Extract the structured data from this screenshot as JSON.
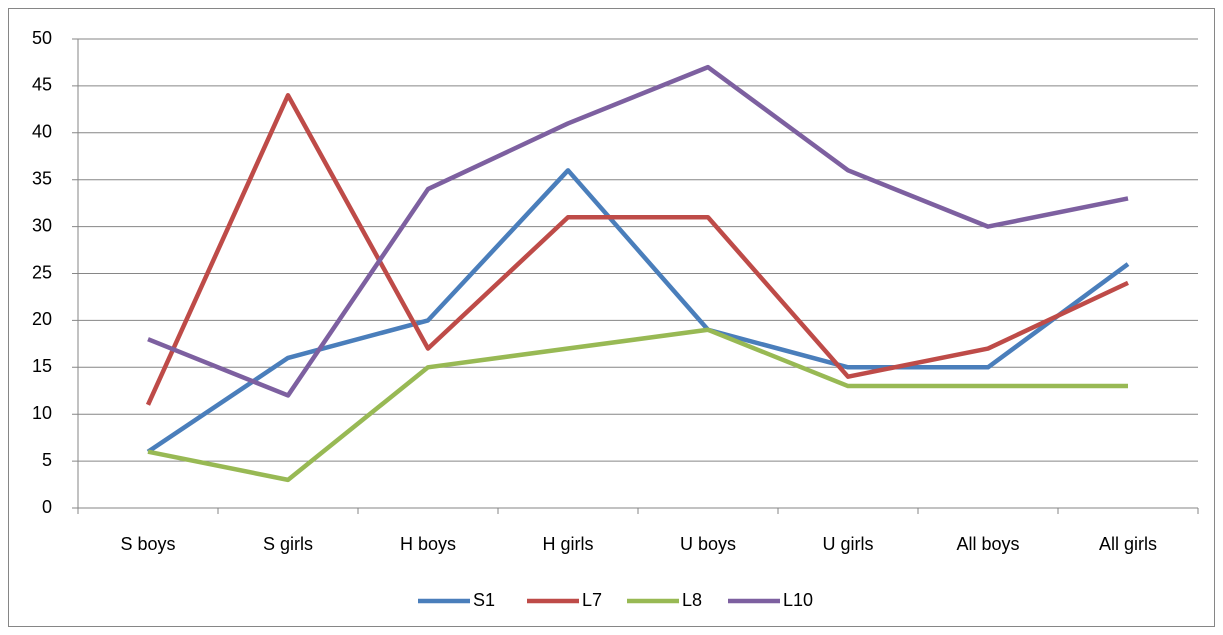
{
  "chart_data": {
    "type": "line",
    "categories": [
      "S boys",
      "S girls",
      "H boys",
      "H girls",
      "U boys",
      "U girls",
      "All boys",
      "All girls"
    ],
    "series": [
      {
        "name": "S1",
        "color": "#4a7ebb",
        "values": [
          6,
          16,
          20,
          36,
          19,
          15,
          15,
          26
        ]
      },
      {
        "name": "L7",
        "color": "#be4b48",
        "values": [
          11,
          44,
          17,
          31,
          31,
          14,
          17,
          24
        ]
      },
      {
        "name": "L8",
        "color": "#98b954",
        "values": [
          6,
          3,
          15,
          17,
          19,
          13,
          13,
          13
        ]
      },
      {
        "name": "L10",
        "color": "#7d60a0",
        "values": [
          18,
          12,
          34,
          41,
          47,
          36,
          30,
          33
        ]
      }
    ],
    "ylim": [
      0,
      50
    ],
    "yticks": [
      0,
      5,
      10,
      15,
      20,
      25,
      30,
      35,
      40,
      45,
      50
    ],
    "grid": true,
    "legend": "bottom"
  }
}
